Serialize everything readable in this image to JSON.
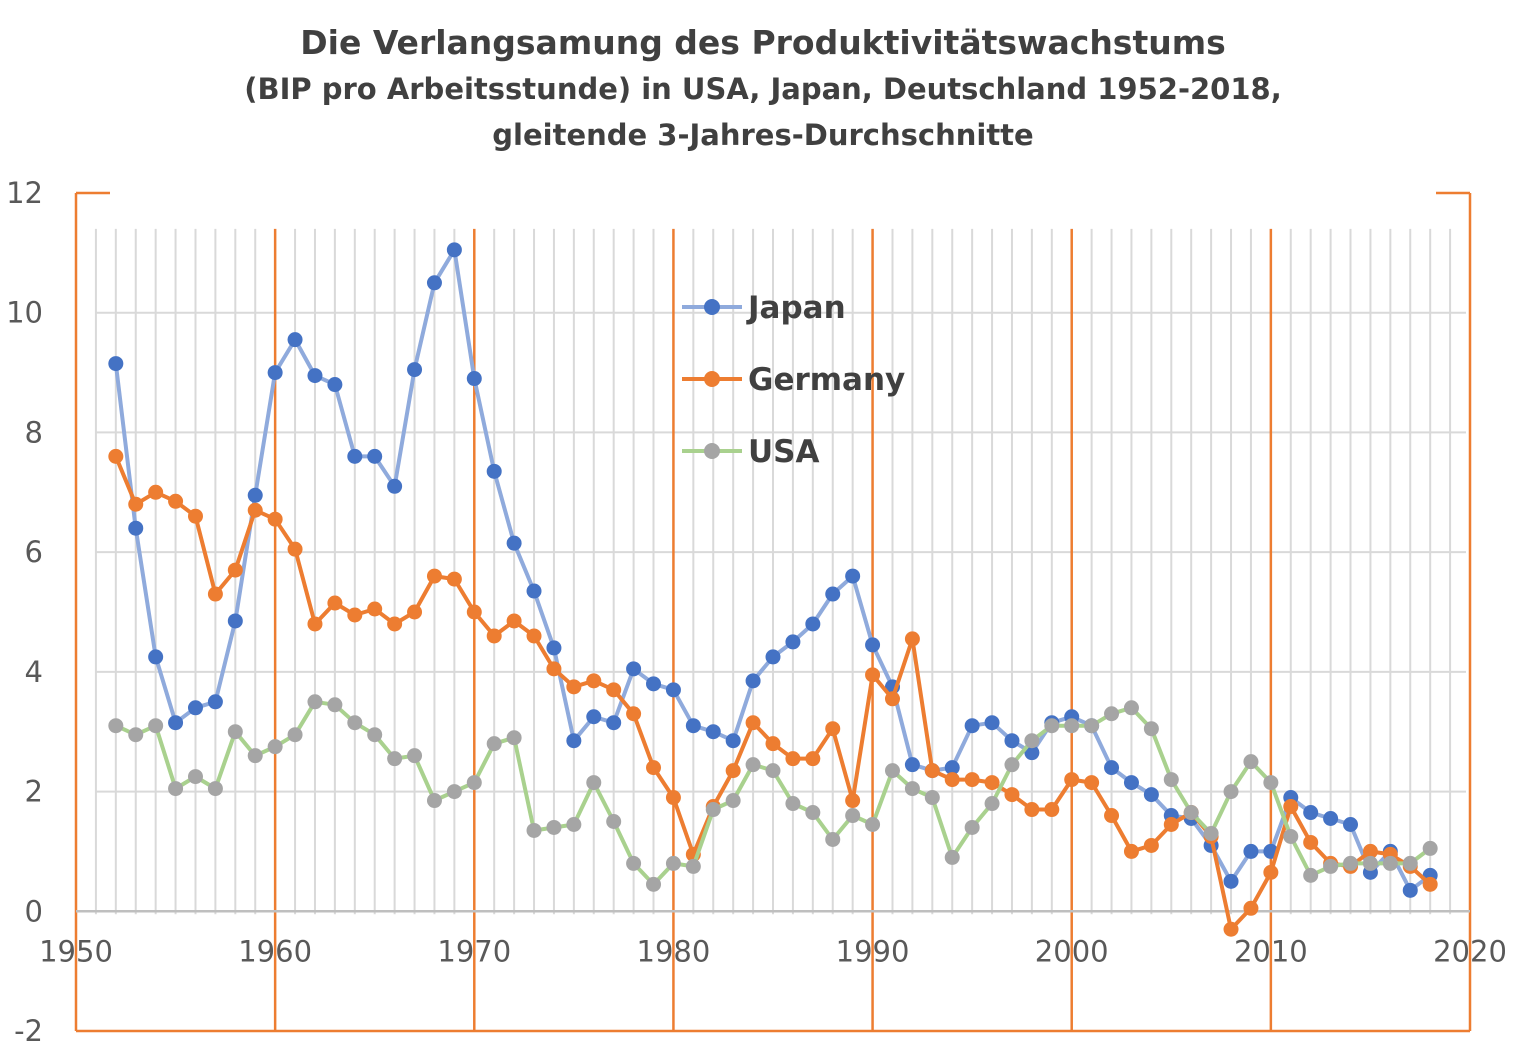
{
  "chart_data": {
    "type": "line",
    "title": "Die Verlangsamung des Produktivitätswachstums",
    "subtitle_line1": "(BIP pro Arbeitsstunde) in USA, Japan, Deutschland 1952-2018,",
    "subtitle_line2": "gleitende 3-Jahres-Durchschnitte",
    "xlim": [
      1950,
      2020
    ],
    "ylim": [
      -2,
      12
    ],
    "x_ticks": [
      1950,
      1960,
      1970,
      1980,
      1990,
      2000,
      2010,
      2020
    ],
    "y_ticks": [
      -2,
      0,
      2,
      4,
      6,
      8,
      10,
      12
    ],
    "x_tick_labels": [
      "1950",
      "1960",
      "1970",
      "1980",
      "1990",
      "2000",
      "2010",
      "2020"
    ],
    "y_tick_labels": [
      "-2",
      "0",
      "2",
      "4",
      "6",
      "8",
      "10",
      "12"
    ],
    "legend_placement": "inside-center-top",
    "grid": true,
    "colors": {
      "grid_minor": "#d9d9d9",
      "grid_major": "#ed7d31",
      "frame": "#ed7d31",
      "axis": "#bfbfbf"
    },
    "x": [
      1952,
      1953,
      1954,
      1955,
      1956,
      1957,
      1958,
      1959,
      1960,
      1961,
      1962,
      1963,
      1964,
      1965,
      1966,
      1967,
      1968,
      1969,
      1970,
      1971,
      1972,
      1973,
      1974,
      1975,
      1976,
      1977,
      1978,
      1979,
      1980,
      1981,
      1982,
      1983,
      1984,
      1985,
      1986,
      1987,
      1988,
      1989,
      1990,
      1991,
      1992,
      1993,
      1994,
      1995,
      1996,
      1997,
      1998,
      1999,
      2000,
      2001,
      2002,
      2003,
      2004,
      2005,
      2006,
      2007,
      2008,
      2009,
      2010,
      2011,
      2012,
      2013,
      2014,
      2015,
      2016,
      2017,
      2018
    ],
    "series": [
      {
        "name": "Japan",
        "line_color": "#8faadc",
        "marker_color": "#4472c4",
        "values": [
          9.15,
          6.4,
          4.25,
          3.15,
          3.4,
          3.5,
          4.85,
          6.95,
          9.0,
          9.55,
          8.95,
          8.8,
          7.6,
          7.6,
          7.1,
          9.05,
          10.5,
          11.05,
          8.9,
          7.35,
          6.15,
          5.35,
          4.4,
          2.85,
          3.25,
          3.15,
          4.05,
          3.8,
          3.7,
          3.1,
          3.0,
          2.85,
          3.85,
          4.25,
          4.5,
          4.8,
          5.3,
          5.6,
          4.45,
          3.75,
          2.45,
          2.35,
          2.4,
          3.1,
          3.15,
          2.85,
          2.65,
          3.15,
          3.25,
          3.1,
          2.4,
          2.15,
          1.95,
          1.6,
          1.55,
          1.1,
          0.5,
          1.0,
          1.0,
          1.9,
          1.65,
          1.55,
          1.45,
          0.65,
          1.0,
          0.35,
          0.6
        ]
      },
      {
        "name": "Germany",
        "line_color": "#ed7d31",
        "marker_color": "#ed7d31",
        "values": [
          7.6,
          6.8,
          7.0,
          6.85,
          6.6,
          5.3,
          5.7,
          6.7,
          6.55,
          6.05,
          4.8,
          5.15,
          4.95,
          5.05,
          4.8,
          5.0,
          5.6,
          5.55,
          5.0,
          4.6,
          4.85,
          4.6,
          4.05,
          3.75,
          3.85,
          3.7,
          3.3,
          2.4,
          1.9,
          0.95,
          1.75,
          2.35,
          3.15,
          2.8,
          2.55,
          2.55,
          3.05,
          1.85,
          3.95,
          3.55,
          4.55,
          2.35,
          2.2,
          2.2,
          2.15,
          1.95,
          1.7,
          1.7,
          2.2,
          2.15,
          1.6,
          1.0,
          1.1,
          1.45,
          1.65,
          1.25,
          -0.3,
          0.05,
          0.65,
          1.75,
          1.15,
          0.8,
          0.75,
          1.0,
          0.95,
          0.75,
          0.45
        ]
      },
      {
        "name": "USA",
        "line_color": "#a9d18e",
        "marker_color": "#a5a5a5",
        "values": [
          3.1,
          2.95,
          3.1,
          2.05,
          2.25,
          2.05,
          3.0,
          2.6,
          2.75,
          2.95,
          3.5,
          3.45,
          3.15,
          2.95,
          2.55,
          2.6,
          1.85,
          2.0,
          2.15,
          2.8,
          2.9,
          1.35,
          1.4,
          1.45,
          2.15,
          1.5,
          0.8,
          0.45,
          0.8,
          0.75,
          1.7,
          1.85,
          2.45,
          2.35,
          1.8,
          1.65,
          1.2,
          1.6,
          1.45,
          2.35,
          2.05,
          1.9,
          0.9,
          1.4,
          1.8,
          2.45,
          2.85,
          3.1,
          3.1,
          3.1,
          3.3,
          3.4,
          3.05,
          2.2,
          1.65,
          1.3,
          2.0,
          2.5,
          2.15,
          1.25,
          0.6,
          0.75,
          0.8,
          0.8,
          0.8,
          0.8,
          1.05
        ]
      }
    ]
  }
}
